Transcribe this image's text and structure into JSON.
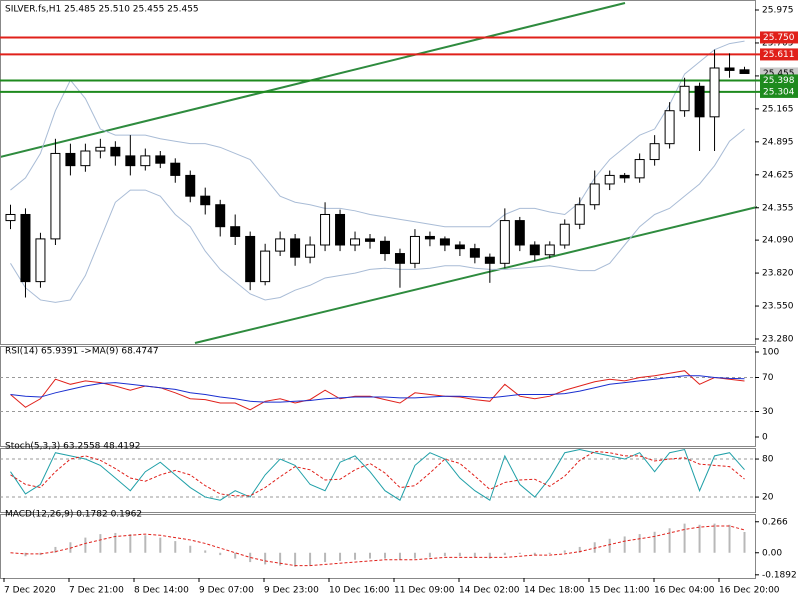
{
  "chart_data": {
    "type": "candlestick",
    "header": "SILVER.fs,H1  25.485 25.510 25.455 25.455",
    "time_labels": [
      "7 Dec 2020",
      "7 Dec 21:00",
      "8 Dec 14:00",
      "9 Dec 07:00",
      "9 Dec 23:00",
      "10 Dec 16:00",
      "11 Dec 09:00",
      "14 Dec 02:00",
      "14 Dec 18:00",
      "15 Dec 11:00",
      "16 Dec 04:00",
      "16 Dec 20:00"
    ],
    "ylim": [
      23.28,
      25.975
    ],
    "yticks": [
      {
        "value": 25.975,
        "label": "25.975"
      },
      25.705,
      25.435,
      25.165,
      24.895,
      24.625,
      24.355,
      {
        "value": 24.09,
        "label": "24.090"
      },
      {
        "value": 23.82,
        "label": "23.820"
      },
      {
        "value": 23.55,
        "label": "23.550"
      },
      {
        "value": 23.28,
        "label": "23.280"
      }
    ],
    "opens": [
      24.25,
      24.3,
      23.75,
      24.1,
      24.8,
      24.7,
      24.82,
      24.85,
      24.78,
      24.7,
      24.78,
      24.72,
      24.62,
      24.45,
      24.38,
      24.2,
      24.12,
      23.75,
      24.0,
      24.1,
      23.95,
      24.05,
      24.3,
      24.05,
      24.1,
      24.08,
      23.98,
      23.9,
      24.12,
      24.1,
      24.05,
      24.02,
      23.95,
      23.9,
      24.25,
      24.05,
      23.97,
      24.05,
      24.22,
      24.38,
      24.55,
      24.62,
      24.6,
      24.75,
      24.88,
      25.15,
      25.35,
      25.1,
      25.5,
      25.485
    ],
    "highs": [
      24.38,
      24.35,
      24.15,
      24.92,
      24.88,
      24.88,
      24.92,
      24.9,
      24.95,
      24.84,
      24.82,
      24.76,
      24.66,
      24.52,
      24.42,
      24.3,
      24.16,
      24.06,
      24.16,
      24.14,
      24.12,
      24.4,
      24.34,
      24.16,
      24.14,
      24.12,
      24.02,
      24.18,
      24.16,
      24.12,
      24.08,
      24.06,
      23.98,
      24.35,
      24.28,
      24.08,
      24.08,
      24.26,
      24.44,
      24.66,
      24.66,
      24.64,
      24.8,
      24.95,
      25.22,
      25.42,
      25.38,
      25.65,
      25.62,
      25.51
    ],
    "lows": [
      24.18,
      23.62,
      23.7,
      24.05,
      24.62,
      24.65,
      24.76,
      24.7,
      24.62,
      24.66,
      24.68,
      24.56,
      24.4,
      24.3,
      24.12,
      24.05,
      23.68,
      23.72,
      23.96,
      23.88,
      23.9,
      24.0,
      24.0,
      24.0,
      24.02,
      23.92,
      23.7,
      23.86,
      24.04,
      24.0,
      23.96,
      23.9,
      23.74,
      23.86,
      24.0,
      23.92,
      23.94,
      24.02,
      24.18,
      24.34,
      24.5,
      24.56,
      24.56,
      24.7,
      24.84,
      25.1,
      24.82,
      24.82,
      25.42,
      25.455
    ],
    "closes": [
      24.3,
      23.75,
      24.1,
      24.8,
      24.7,
      24.82,
      24.85,
      24.78,
      24.7,
      24.78,
      24.72,
      24.62,
      24.45,
      24.38,
      24.2,
      24.12,
      23.75,
      24.0,
      24.1,
      23.95,
      24.05,
      24.3,
      24.05,
      24.1,
      24.08,
      23.98,
      23.9,
      24.12,
      24.1,
      24.05,
      24.02,
      23.95,
      23.9,
      24.25,
      24.05,
      23.97,
      24.05,
      24.22,
      24.38,
      24.55,
      24.62,
      24.6,
      24.75,
      24.88,
      25.15,
      25.35,
      25.1,
      25.5,
      25.48,
      25.455
    ],
    "bands": [
      {
        "color": "#a9bcd6",
        "values": [
          24.5,
          24.6,
          24.8,
          25.15,
          25.4,
          25.25,
          25.0,
          24.95,
          24.95,
          24.95,
          24.92,
          24.9,
          24.88,
          24.88,
          24.85,
          24.8,
          24.75,
          24.6,
          24.45,
          24.4,
          24.38,
          24.35,
          24.35,
          24.33,
          24.3,
          24.28,
          24.26,
          24.24,
          24.22,
          24.2,
          24.2,
          24.2,
          24.2,
          24.3,
          24.35,
          24.35,
          24.32,
          24.3,
          24.4,
          24.6,
          24.75,
          24.85,
          24.95,
          25.0,
          25.2,
          25.45,
          25.55,
          25.65,
          25.7,
          25.72
        ]
      },
      {
        "color": "#a9bcd6",
        "values": [
          23.9,
          23.7,
          23.6,
          23.58,
          23.6,
          23.8,
          24.1,
          24.4,
          24.5,
          24.5,
          24.45,
          24.3,
          24.2,
          24.0,
          23.85,
          23.75,
          23.65,
          23.6,
          23.62,
          23.68,
          23.72,
          23.78,
          23.8,
          23.82,
          23.85,
          23.86,
          23.85,
          23.85,
          23.86,
          23.88,
          23.88,
          23.86,
          23.85,
          23.85,
          23.86,
          23.87,
          23.88,
          23.86,
          23.84,
          23.84,
          23.9,
          24.05,
          24.2,
          24.3,
          24.35,
          24.45,
          24.55,
          24.7,
          24.9,
          25.0
        ]
      }
    ],
    "levels": [
      {
        "value": 25.75,
        "label": "25.750",
        "color": "#e0201a"
      },
      {
        "value": 25.611,
        "label": "25.611",
        "color": "#e0201a"
      },
      {
        "value": 25.398,
        "label": "25.398",
        "color": "#1e8a1e"
      },
      {
        "value": 25.304,
        "label": "25.304",
        "color": "#1e8a1e"
      }
    ],
    "current_price": {
      "value": 25.455,
      "label": "25.455"
    },
    "indicators": [
      {
        "title": "RSI(14) 65.9391  ->MA(9) 68.4747",
        "ylim": [
          0,
          100
        ],
        "yticks": [
          100,
          70,
          30,
          0
        ],
        "levels": [
          70,
          30
        ],
        "series": [
          {
            "color": "#e0201a",
            "dashed": false,
            "values": [
              50,
              35,
              45,
              68,
              62,
              66,
              64,
              60,
              55,
              60,
              58,
              52,
              45,
              44,
              40,
              40,
              32,
              42,
              45,
              40,
              44,
              55,
              45,
              48,
              48,
              44,
              40,
              52,
              50,
              48,
              47,
              44,
              42,
              62,
              48,
              45,
              48,
              55,
              60,
              65,
              68,
              66,
              70,
              72,
              75,
              78,
              62,
              70,
              68,
              65.9391
            ]
          },
          {
            "color": "#1a2fd0",
            "dashed": false,
            "values": [
              50,
              48,
              47,
              52,
              56,
              60,
              63,
              64,
              62,
              60,
              58,
              56,
              52,
              50,
              47,
              45,
              42,
              41,
              41,
              42,
              43,
              45,
              46,
              47,
              47,
              47,
              46,
              46,
              47,
              48,
              48,
              47,
              46,
              48,
              50,
              50,
              50,
              51,
              54,
              58,
              62,
              64,
              66,
              68,
              70,
              72,
              72,
              70,
              69,
              68.4747
            ]
          }
        ]
      },
      {
        "title": "Stoch(5,3,3) 63.2558 48.4192",
        "ylim": [
          -2,
          99
        ],
        "yticks": [
          80,
          20
        ],
        "levels": [
          80,
          20
        ],
        "series": [
          {
            "color": "#20a0a8",
            "dashed": false,
            "values": [
              60,
              25,
              40,
              90,
              85,
              80,
              70,
              50,
              30,
              60,
              75,
              55,
              35,
              20,
              15,
              30,
              20,
              55,
              80,
              70,
              40,
              30,
              75,
              85,
              60,
              30,
              15,
              70,
              90,
              80,
              50,
              30,
              15,
              85,
              40,
              20,
              50,
              90,
              95,
              90,
              85,
              80,
              90,
              60,
              90,
              95,
              30,
              85,
              90,
              63.2558
            ]
          },
          {
            "color": "#e0201a",
            "dashed": true,
            "values": [
              55,
              40,
              35,
              60,
              80,
              85,
              78,
              65,
              50,
              45,
              55,
              62,
              55,
              38,
              25,
              22,
              22,
              35,
              52,
              68,
              63,
              47,
              48,
              63,
              73,
              58,
              35,
              38,
              58,
              80,
              73,
              53,
              32,
              43,
              47,
              48,
              37,
              53,
              78,
              92,
              90,
              85,
              85,
              77,
              80,
              82,
              72,
              70,
              68,
              48.4192
            ]
          }
        ]
      },
      {
        "title": "MACD(12,26,9) 0.1782 0.1962",
        "ylim": [
          -0.208,
          0.324
        ],
        "yticks": [
          0.266,
          {
            "value": 0,
            "label": "0.00"
          },
          -0.1892
        ],
        "levels": [],
        "histogram": {
          "color": "#b8b8b8",
          "values": [
            0.0,
            -0.03,
            -0.02,
            0.05,
            0.09,
            0.13,
            0.16,
            0.17,
            0.16,
            0.15,
            0.13,
            0.1,
            0.06,
            0.02,
            -0.02,
            -0.05,
            -0.08,
            -0.1,
            -0.11,
            -0.12,
            -0.11,
            -0.08,
            -0.07,
            -0.06,
            -0.05,
            -0.05,
            -0.06,
            -0.05,
            -0.04,
            -0.03,
            -0.03,
            -0.04,
            -0.05,
            -0.02,
            -0.01,
            -0.02,
            -0.01,
            0.02,
            0.05,
            0.09,
            0.12,
            0.14,
            0.16,
            0.18,
            0.21,
            0.25,
            0.24,
            0.25,
            0.24,
            0.1782
          ]
        },
        "series": [
          {
            "color": "#e0201a",
            "dashed": true,
            "values": [
              0.0,
              -0.01,
              -0.01,
              0.01,
              0.04,
              0.08,
              0.11,
              0.14,
              0.15,
              0.16,
              0.15,
              0.13,
              0.11,
              0.08,
              0.04,
              0.0,
              -0.04,
              -0.07,
              -0.09,
              -0.11,
              -0.11,
              -0.1,
              -0.09,
              -0.08,
              -0.07,
              -0.06,
              -0.06,
              -0.06,
              -0.05,
              -0.04,
              -0.04,
              -0.04,
              -0.04,
              -0.04,
              -0.03,
              -0.02,
              -0.02,
              -0.01,
              0.01,
              0.04,
              0.07,
              0.1,
              0.12,
              0.14,
              0.17,
              0.2,
              0.22,
              0.23,
              0.23,
              0.1962
            ]
          }
        ]
      }
    ]
  }
}
